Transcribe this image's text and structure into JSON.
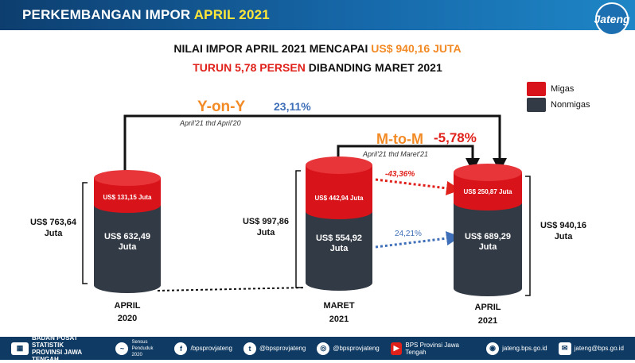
{
  "header": {
    "title_prefix": "PERKEMBANGAN IMPOR",
    "title_highlight": "APRIL 2021",
    "logo_text": "Jateng"
  },
  "headline": {
    "line1_prefix": "NILAI IMPOR APRIL 2021 MENCAPAI",
    "line1_value": "US$ 940,16 JUTA",
    "line2_red": "TURUN 5,78 PERSEN",
    "line2_suffix": "DIBANDING MARET 2021"
  },
  "legend": {
    "migas": "Migas",
    "nonmigas": "Nonmigas"
  },
  "yoy": {
    "label": "Y-on-Y",
    "value": "23,11%",
    "caption": "April'21 thd April'20"
  },
  "mtm": {
    "label": "M-to-M",
    "value": "-5,78%",
    "caption": "April'21 thd Maret'21"
  },
  "arrows": {
    "migas_change": "-43,36%",
    "nonmigas_change": "24,21%"
  },
  "bars": [
    {
      "period": "APRIL",
      "year": "2020",
      "migas": "US$ 131,15 Juta",
      "nonmigas_val": "US$ 632,49",
      "nonmigas_unit": "Juta",
      "total_val": "US$ 763,64",
      "total_unit": "Juta"
    },
    {
      "period": "MARET",
      "year": "2021",
      "migas": "US$ 442,94 Juta",
      "nonmigas_val": "US$ 554,92",
      "nonmigas_unit": "Juta",
      "total_val": "US$ 997,86",
      "total_unit": "Juta"
    },
    {
      "period": "APRIL",
      "year": "2021",
      "migas": "US$ 250,87 Juta",
      "nonmigas_val": "US$ 689,29",
      "nonmigas_unit": "Juta",
      "total_val": "US$ 940,16",
      "total_unit": "Juta"
    }
  ],
  "footer": {
    "org_line1": "BADAN PUSAT STATISTIK",
    "org_line2": "PROVINSI JAWA TENGAH",
    "sensus": "Sensus Penduduk 2020",
    "facebook": "/bpsprovjateng",
    "twitter": "@bpsprovjateng",
    "instagram": "@bpsprovjateng",
    "youtube": "BPS Provinsi Jawa Tengah",
    "web": "jateng.bps.go.id",
    "email": "jateng@bps.go.id"
  },
  "colors": {
    "migas": "#d8141a",
    "nonmigas": "#323a45",
    "accent_orange": "#f28a26",
    "accent_blue": "#3f6fb8",
    "header_blue": "#12589a"
  }
}
